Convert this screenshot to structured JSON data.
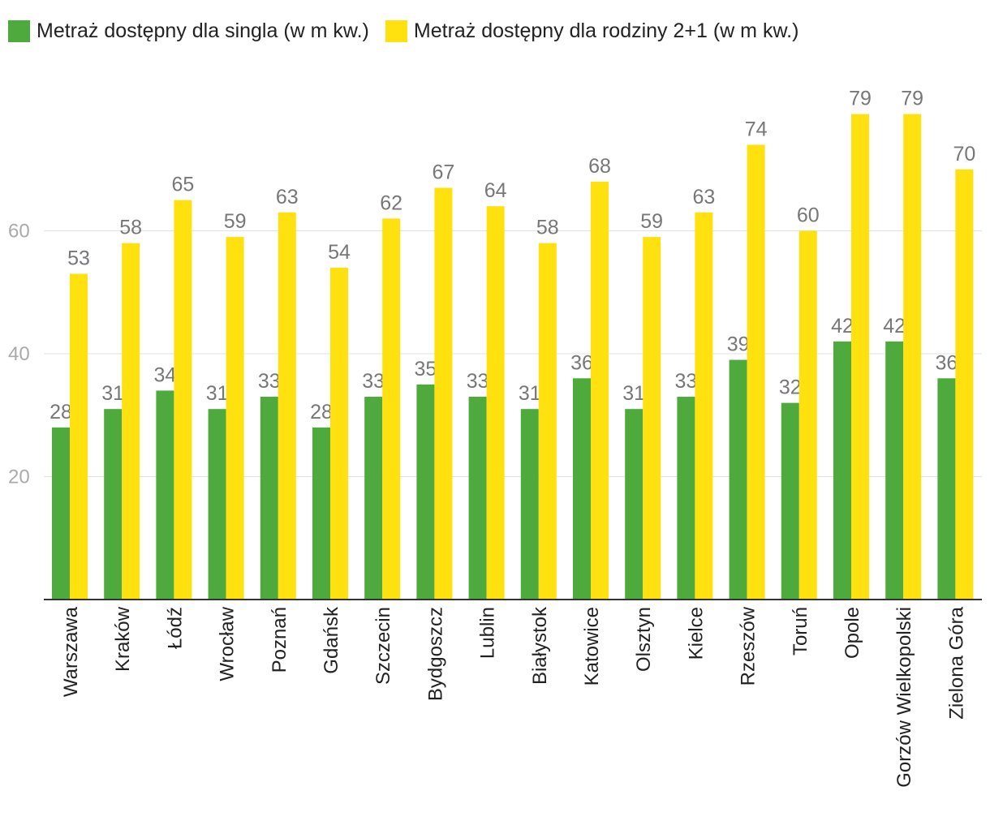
{
  "chart_data": {
    "type": "bar",
    "categories": [
      "Warszawa",
      "Kraków",
      "Łódź",
      "Wrocław",
      "Poznań",
      "Gdańsk",
      "Szczecin",
      "Bydgoszcz",
      "Lublin",
      "Białystok",
      "Katowice",
      "Olsztyn",
      "Kielce",
      "Rzeszów",
      "Toruń",
      "Opole",
      "Gorzów Wielkopolski",
      "Zielona Góra"
    ],
    "series": [
      {
        "name": "Metraż dostępny dla singla (w m kw.)",
        "color": "#4eaa3c",
        "values": [
          28,
          31,
          34,
          31,
          33,
          28,
          33,
          35,
          33,
          31,
          36,
          31,
          33,
          39,
          32,
          42,
          42,
          36
        ]
      },
      {
        "name": "Metraż dostępny dla rodziny 2+1 (w m kw.)",
        "color": "#ffe110",
        "values": [
          53,
          58,
          65,
          59,
          63,
          54,
          62,
          67,
          64,
          58,
          68,
          59,
          63,
          74,
          60,
          79,
          79,
          70
        ]
      }
    ],
    "yticks": [
      20,
      40,
      60
    ],
    "ylim": [
      0,
      85
    ],
    "grid": true,
    "legend_position": "top-left",
    "data_labels": true
  }
}
